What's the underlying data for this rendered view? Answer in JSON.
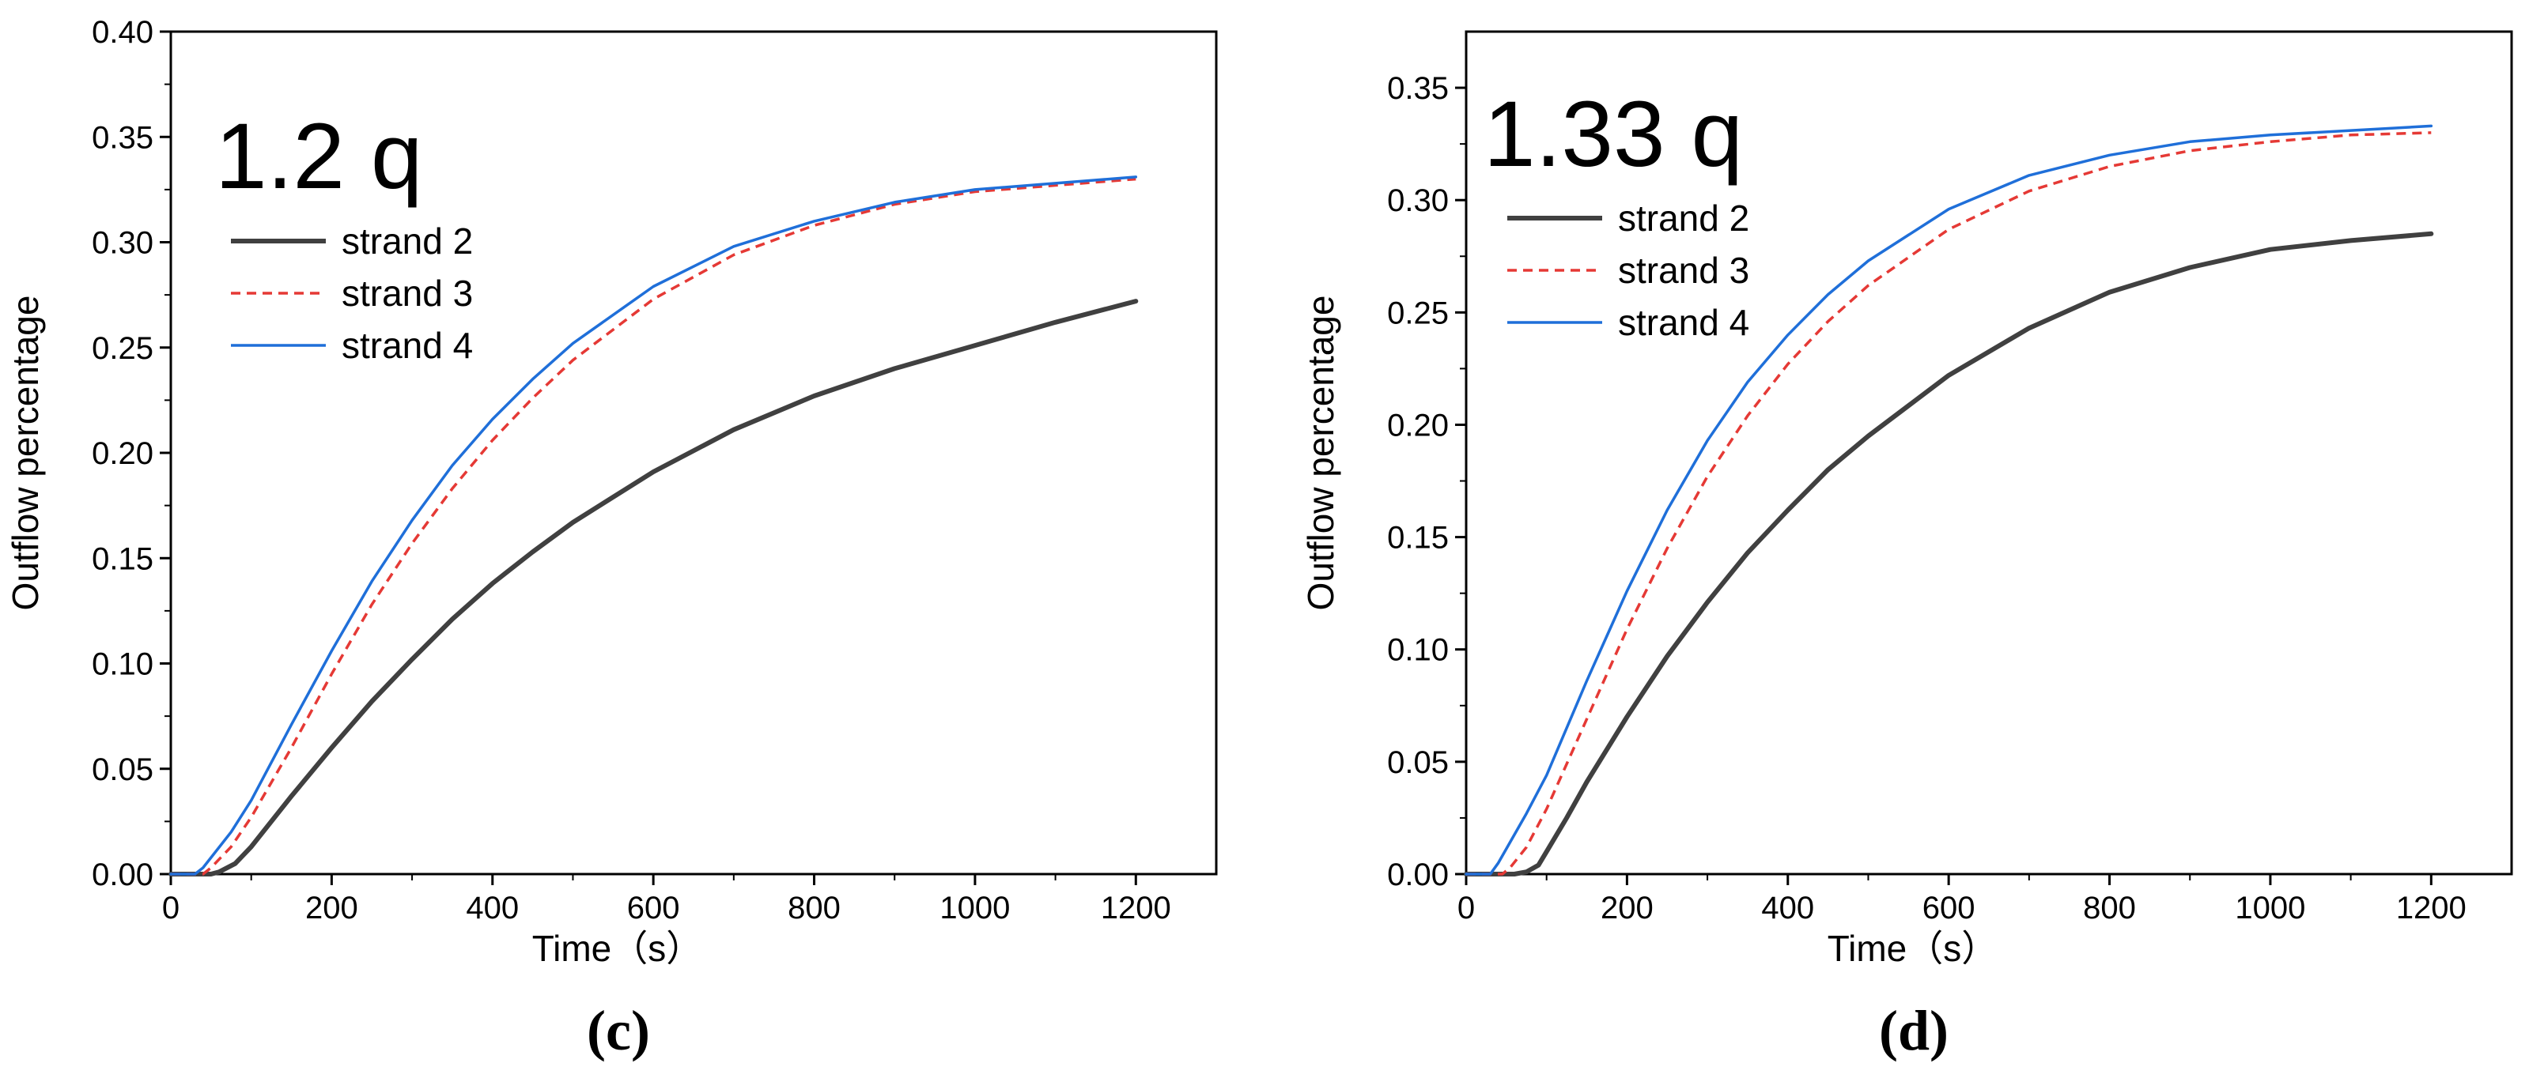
{
  "chart_data": [
    {
      "id": "c",
      "type": "line",
      "caption": "(c)",
      "annotation": "1.2 q",
      "xlabel": "Time（s）",
      "ylabel": "Outflow percentage",
      "xlim": [
        0,
        1300
      ],
      "ylim": [
        0,
        0.4
      ],
      "xticks": [
        0,
        200,
        400,
        600,
        800,
        1000,
        1200
      ],
      "yticks": [
        0.0,
        0.05,
        0.1,
        0.15,
        0.2,
        0.25,
        0.3,
        0.35,
        0.4
      ],
      "ytick_decimals": 2,
      "legend_position": "upper-left",
      "series": [
        {
          "name": "strand 2",
          "label": "strand 2",
          "color": "#404040",
          "style": "solid",
          "weight": "thick",
          "x": [
            0,
            50,
            60,
            80,
            100,
            125,
            150,
            200,
            250,
            300,
            350,
            400,
            450,
            500,
            600,
            700,
            800,
            900,
            1000,
            1100,
            1200
          ],
          "y": [
            0,
            0,
            0.001,
            0.005,
            0.013,
            0.025,
            0.037,
            0.06,
            0.082,
            0.102,
            0.121,
            0.138,
            0.153,
            0.167,
            0.191,
            0.211,
            0.227,
            0.24,
            0.251,
            0.262,
            0.272
          ]
        },
        {
          "name": "strand 3",
          "label": "strand 3",
          "color": "#e53935",
          "style": "dashed",
          "weight": "normal",
          "x": [
            0,
            40,
            50,
            75,
            100,
            150,
            200,
            250,
            300,
            350,
            400,
            450,
            500,
            600,
            700,
            800,
            900,
            1000,
            1100,
            1200
          ],
          "y": [
            0,
            0,
            0.003,
            0.013,
            0.027,
            0.06,
            0.095,
            0.128,
            0.157,
            0.183,
            0.206,
            0.226,
            0.244,
            0.273,
            0.294,
            0.308,
            0.318,
            0.324,
            0.327,
            0.33
          ]
        },
        {
          "name": "strand 4",
          "label": "strand 4",
          "color": "#1f6fd9",
          "style": "solid",
          "weight": "normal",
          "x": [
            0,
            30,
            40,
            75,
            100,
            150,
            200,
            250,
            300,
            350,
            400,
            450,
            500,
            600,
            700,
            800,
            900,
            1000,
            1100,
            1200
          ],
          "y": [
            0,
            0,
            0.003,
            0.02,
            0.035,
            0.071,
            0.106,
            0.139,
            0.168,
            0.194,
            0.216,
            0.235,
            0.252,
            0.279,
            0.298,
            0.31,
            0.319,
            0.325,
            0.328,
            0.331
          ]
        }
      ]
    },
    {
      "id": "d",
      "type": "line",
      "caption": "(d)",
      "annotation": "1.33 q",
      "xlabel": "Time（s）",
      "ylabel": "Outflow percentage",
      "xlim": [
        0,
        1300
      ],
      "ylim": [
        0,
        0.375
      ],
      "xticks": [
        0,
        200,
        400,
        600,
        800,
        1000,
        1200
      ],
      "yticks": [
        0.0,
        0.05,
        0.1,
        0.15,
        0.2,
        0.25,
        0.3,
        0.35
      ],
      "ytick_decimals": 2,
      "legend_position": "upper-left",
      "series": [
        {
          "name": "strand 2",
          "label": "strand 2",
          "color": "#404040",
          "style": "solid",
          "weight": "thick",
          "x": [
            0,
            60,
            75,
            90,
            100,
            125,
            150,
            200,
            250,
            300,
            350,
            400,
            450,
            500,
            600,
            700,
            800,
            900,
            1000,
            1100,
            1200
          ],
          "y": [
            0,
            0,
            0.001,
            0.004,
            0.01,
            0.025,
            0.041,
            0.07,
            0.097,
            0.121,
            0.143,
            0.162,
            0.18,
            0.195,
            0.222,
            0.243,
            0.259,
            0.27,
            0.278,
            0.282,
            0.285
          ]
        },
        {
          "name": "strand 3",
          "label": "strand 3",
          "color": "#e53935",
          "style": "dashed",
          "weight": "normal",
          "x": [
            0,
            45,
            55,
            75,
            100,
            150,
            200,
            250,
            300,
            350,
            400,
            450,
            500,
            600,
            700,
            800,
            900,
            1000,
            1100,
            1200
          ],
          "y": [
            0,
            0,
            0.003,
            0.012,
            0.029,
            0.069,
            0.109,
            0.145,
            0.177,
            0.204,
            0.227,
            0.246,
            0.262,
            0.287,
            0.304,
            0.315,
            0.322,
            0.326,
            0.329,
            0.33
          ]
        },
        {
          "name": "strand 4",
          "label": "strand 4",
          "color": "#1f6fd9",
          "style": "solid",
          "weight": "normal",
          "x": [
            0,
            30,
            40,
            75,
            100,
            150,
            200,
            250,
            300,
            350,
            400,
            450,
            500,
            600,
            700,
            800,
            900,
            1000,
            1100,
            1200
          ],
          "y": [
            0,
            0,
            0.005,
            0.027,
            0.044,
            0.086,
            0.126,
            0.162,
            0.193,
            0.219,
            0.24,
            0.258,
            0.273,
            0.296,
            0.311,
            0.32,
            0.326,
            0.329,
            0.331,
            0.333
          ]
        }
      ]
    }
  ]
}
